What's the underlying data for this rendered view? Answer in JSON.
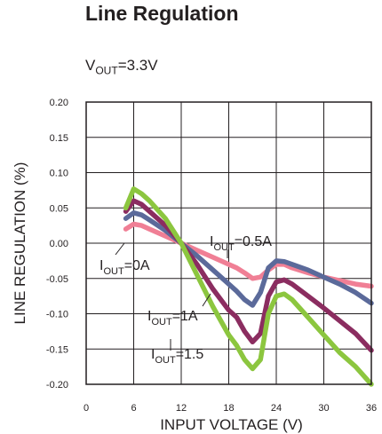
{
  "chart_data": {
    "type": "line",
    "title": "Line Regulation",
    "condition": {
      "prefix": "V",
      "sub": "OUT",
      "suffix": "=3.3V"
    },
    "xlabel": "INPUT VOLTAGE (V)",
    "ylabel": "LINE REGULATION (%)",
    "xlim": [
      0,
      36
    ],
    "ylim": [
      -0.2,
      0.2
    ],
    "x_ticks": [
      0,
      6,
      12,
      18,
      24,
      30,
      36
    ],
    "x_tick_labels": [
      "0",
      "6",
      "12",
      "18",
      "24",
      "30",
      "36"
    ],
    "y_ticks": [
      0.2,
      0.15,
      0.1,
      0.05,
      0.0,
      -0.05,
      -0.1,
      -0.15,
      -0.2
    ],
    "y_tick_labels": [
      "0.20",
      "0.15",
      "0.10",
      "0.05",
      "0.00",
      "-0.05",
      "-0.10",
      "-0.15",
      "-0.20"
    ],
    "grid": true,
    "series": [
      {
        "label_prefix": "I",
        "label_sub": "OUT",
        "label_suffix": "=0A",
        "color": "#f07f95",
        "x": [
          5,
          6,
          7,
          8,
          10,
          12,
          14,
          16,
          18,
          19,
          20,
          21,
          22,
          23,
          24,
          25,
          26,
          28,
          30,
          32,
          34,
          36
        ],
        "y": [
          0.02,
          0.027,
          0.025,
          0.02,
          0.01,
          0.0,
          -0.01,
          -0.02,
          -0.03,
          -0.035,
          -0.042,
          -0.05,
          -0.048,
          -0.038,
          -0.03,
          -0.03,
          -0.035,
          -0.042,
          -0.048,
          -0.053,
          -0.058,
          -0.061
        ]
      },
      {
        "label_prefix": "I",
        "label_sub": "OUT",
        "label_suffix": "=0.5A",
        "color": "#5b6a9a",
        "x": [
          5,
          6,
          7,
          8,
          10,
          12,
          14,
          16,
          18,
          19,
          20,
          21,
          22,
          23,
          24,
          25,
          26,
          28,
          30,
          32,
          34,
          36
        ],
        "y": [
          0.035,
          0.043,
          0.04,
          0.033,
          0.018,
          0.0,
          -0.018,
          -0.038,
          -0.058,
          -0.068,
          -0.08,
          -0.088,
          -0.07,
          -0.035,
          -0.025,
          -0.026,
          -0.03,
          -0.038,
          -0.048,
          -0.058,
          -0.07,
          -0.085
        ]
      },
      {
        "label_prefix": "I",
        "label_sub": "OUT",
        "label_suffix": "=1A",
        "color": "#8b2d60",
        "x": [
          5,
          6,
          7,
          8,
          10,
          12,
          14,
          16,
          18,
          19,
          20,
          21,
          22,
          23,
          24,
          25,
          26,
          28,
          30,
          32,
          34,
          36
        ],
        "y": [
          0.045,
          0.06,
          0.055,
          0.045,
          0.025,
          0.0,
          -0.03,
          -0.065,
          -0.095,
          -0.105,
          -0.125,
          -0.14,
          -0.128,
          -0.075,
          -0.055,
          -0.052,
          -0.058,
          -0.075,
          -0.092,
          -0.11,
          -0.128,
          -0.152
        ]
      },
      {
        "label_prefix": "I",
        "label_sub": "OUT",
        "label_suffix": "=1.5",
        "color": "#8cc63f",
        "x": [
          5,
          6,
          7,
          8,
          10,
          12,
          14,
          16,
          18,
          19,
          20,
          21,
          22,
          23,
          24,
          25,
          26,
          28,
          30,
          32,
          34,
          36
        ],
        "y": [
          0.05,
          0.077,
          0.07,
          0.06,
          0.035,
          0.0,
          -0.045,
          -0.09,
          -0.13,
          -0.145,
          -0.165,
          -0.178,
          -0.165,
          -0.1,
          -0.075,
          -0.072,
          -0.08,
          -0.105,
          -0.13,
          -0.155,
          -0.175,
          -0.2
        ]
      }
    ]
  }
}
